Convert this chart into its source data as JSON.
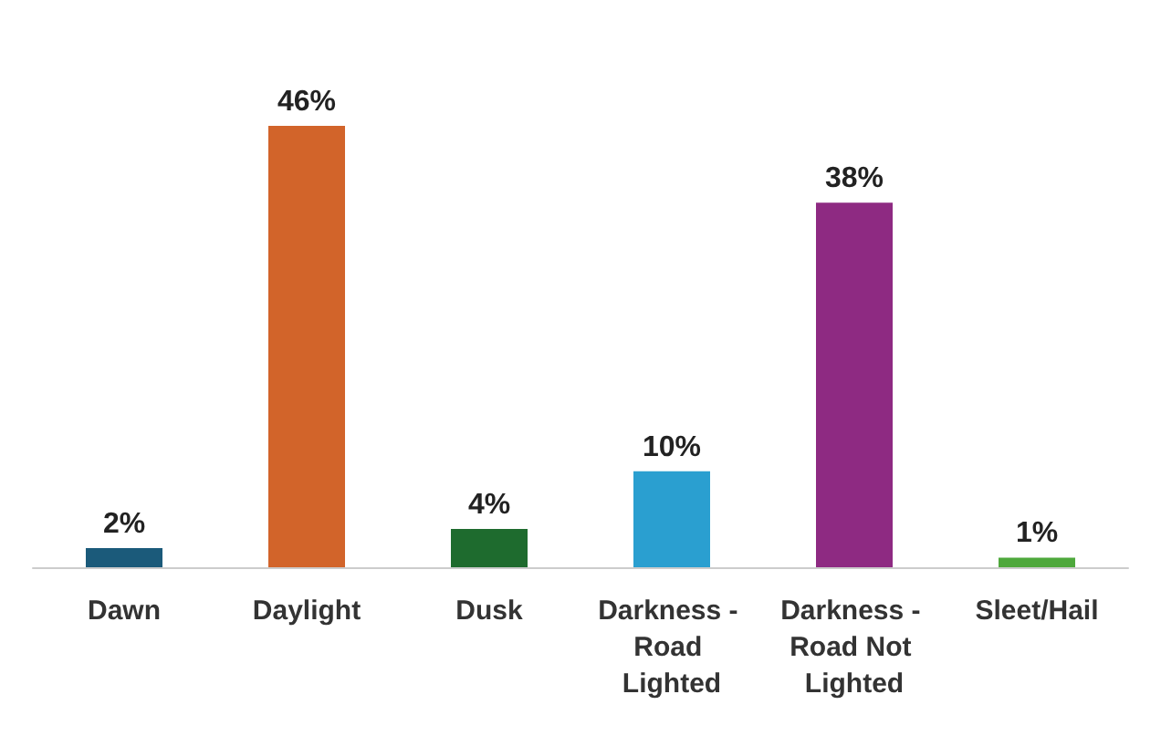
{
  "chart_data": {
    "type": "bar",
    "categories": [
      "Dawn",
      "Daylight",
      "Dusk",
      "Darkness - Road Lighted",
      "Darkness - Road Not Lighted",
      "Sleet/Hail"
    ],
    "values": [
      2,
      46,
      4,
      10,
      38,
      1
    ],
    "colors": [
      "#1b5a7a",
      "#d2642a",
      "#1e6b2e",
      "#2a9fd0",
      "#8e2a82",
      "#4ea83c"
    ],
    "value_labels": [
      "2%",
      "46%",
      "4%",
      "10%",
      "38%",
      "1%"
    ],
    "grid": false
  }
}
